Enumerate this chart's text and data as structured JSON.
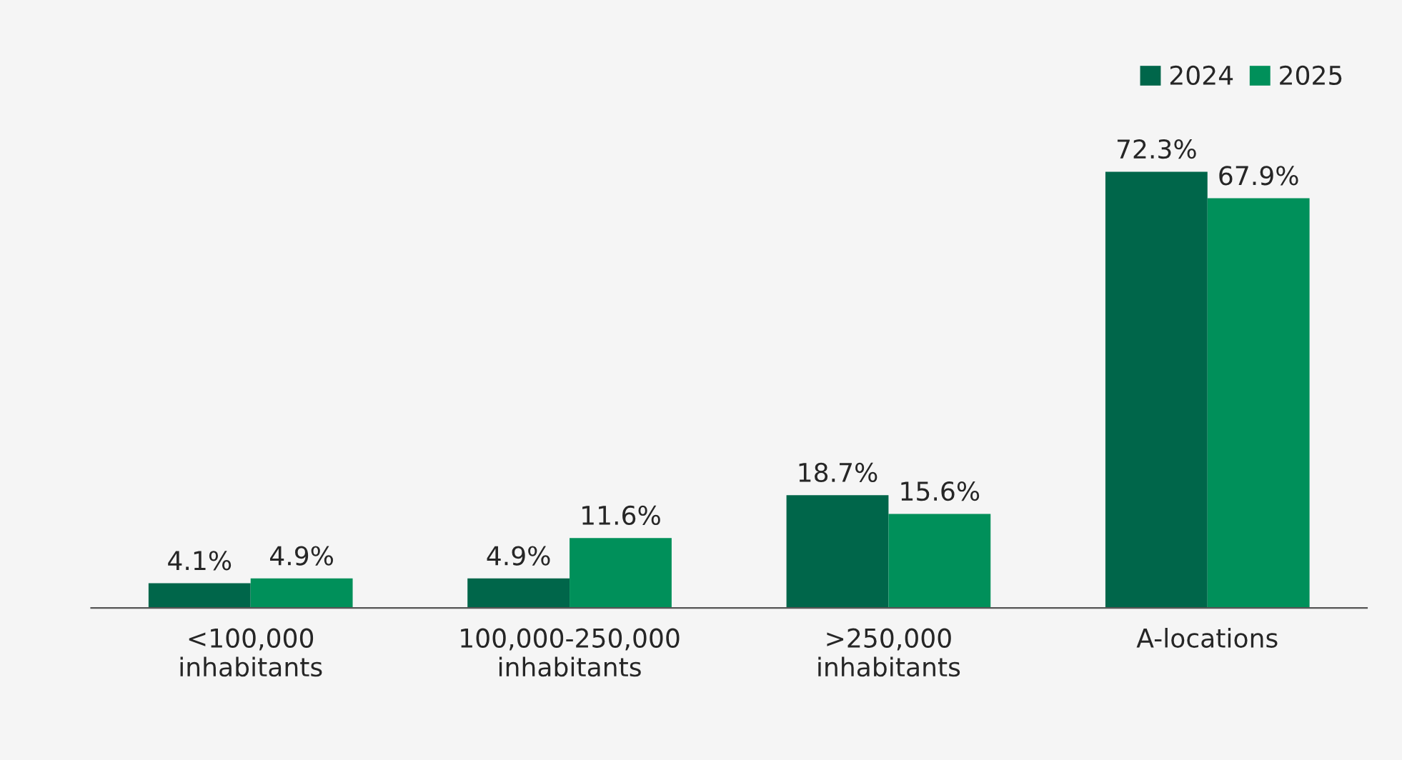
{
  "chart_data": {
    "type": "bar",
    "categories": [
      "<100,000\ninhabitants",
      "100,000-250,000\ninhabitants",
      ">250,000\ninhabitants",
      "A-locations"
    ],
    "series": [
      {
        "name": "2024",
        "color": "#00664a",
        "values": [
          4.1,
          4.9,
          18.7,
          72.3
        ],
        "value_labels": [
          "4.1%",
          "4.9%",
          "18.7%",
          "72.3%"
        ]
      },
      {
        "name": "2025",
        "color": "#00905a",
        "values": [
          4.9,
          11.6,
          15.6,
          67.9
        ],
        "value_labels": [
          "4.9%",
          "11.6%",
          "15.6%",
          "67.9%"
        ]
      }
    ],
    "legend": "top right",
    "grid": false
  }
}
